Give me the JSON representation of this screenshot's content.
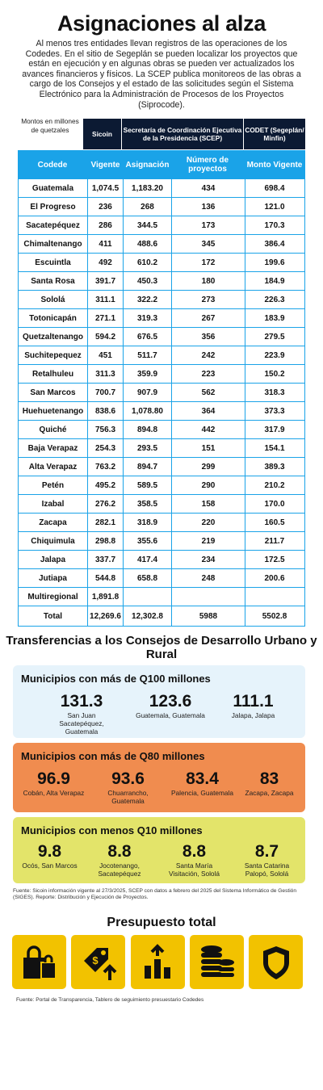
{
  "title": "Asignaciones al alza",
  "intro": "Al menos tres entidades llevan registros de las operaciones de los Codedes. En el sitio de Segeplán se pueden localizar los proyectos que están en ejecución y en algunas obras se pueden ver actualizados los avances financieros y físicos. La SCEP publica monitoreos de las obras a cargo de los Consejos y el estado de las solicitudes según el Sistema Electrónico para la Administración de Procesos de los Proyectos (Siprocode).",
  "table": {
    "note": "Montos en millones de quetzales",
    "group_headers": {
      "sicoin": "Sicoin",
      "scep": "Secretaría de Coordinación Ejecutiva de la Presidencia (SCEP)",
      "codet": "CODET (Segeplán/ Minfin)"
    },
    "columns": {
      "codede": "Codede",
      "vigente": "Vigente",
      "asignacion": "Asignación",
      "proyectos": "Número de proyectos",
      "monto": "Monto Vigente"
    },
    "rows": [
      [
        "Guatemala",
        "1,074.5",
        "1,183.20",
        "434",
        "698.4"
      ],
      [
        "El Progreso",
        "236",
        "268",
        "136",
        "121.0"
      ],
      [
        "Sacatepéquez",
        "286",
        "344.5",
        "173",
        "170.3"
      ],
      [
        "Chimaltenango",
        "411",
        "488.6",
        "345",
        "386.4"
      ],
      [
        "Escuintla",
        "492",
        "610.2",
        "172",
        "199.6"
      ],
      [
        "Santa Rosa",
        "391.7",
        "450.3",
        "180",
        "184.9"
      ],
      [
        "Sololá",
        "311.1",
        "322.2",
        "273",
        "226.3"
      ],
      [
        "Totonicapán",
        "271.1",
        "319.3",
        "267",
        "183.9"
      ],
      [
        "Quetzaltenango",
        "594.2",
        "676.5",
        "356",
        "279.5"
      ],
      [
        "Suchitepequez",
        "451",
        "511.7",
        "242",
        "223.9"
      ],
      [
        "Retalhuleu",
        "311.3",
        "359.9",
        "223",
        "150.2"
      ],
      [
        "San Marcos",
        "700.7",
        "907.9",
        "562",
        "318.3"
      ],
      [
        "Huehuetenango",
        "838.6",
        "1,078.80",
        "364",
        "373.3"
      ],
      [
        "Quiché",
        "756.3",
        "894.8",
        "442",
        "317.9"
      ],
      [
        "Baja Verapaz",
        "254.3",
        "293.5",
        "151",
        "154.1"
      ],
      [
        "Alta Verapaz",
        "763.2",
        "894.7",
        "299",
        "389.3"
      ],
      [
        "Petén",
        "495.2",
        "589.5",
        "290",
        "210.2"
      ],
      [
        "Izabal",
        "276.2",
        "358.5",
        "158",
        "170.0"
      ],
      [
        "Zacapa",
        "282.1",
        "318.9",
        "220",
        "160.5"
      ],
      [
        "Chiquimula",
        "298.8",
        "355.6",
        "219",
        "211.7"
      ],
      [
        "Jalapa",
        "337.7",
        "417.4",
        "234",
        "172.5"
      ],
      [
        "Jutiapa",
        "544.8",
        "658.8",
        "248",
        "200.6"
      ],
      [
        "Multiregional",
        "1,891.8",
        "",
        "",
        ""
      ],
      [
        "Total",
        "12,269.6",
        "12,302.8",
        "5988",
        "5502.8"
      ]
    ]
  },
  "transfers": {
    "title": "Transferencias a los Consejos de Desarrollo Urbano y Rural",
    "groups": [
      {
        "title": "Municipios con más de Q100 millones",
        "color": "#e6f3fb",
        "items": [
          {
            "value": "131.3",
            "label": "San Juan Sacatepéquez, Guatemala"
          },
          {
            "value": "123.6",
            "label": "Guatemala, Guatemala"
          },
          {
            "value": "111.1",
            "label": "Jalapa, Jalapa"
          }
        ]
      },
      {
        "title": "Municipios con más de Q80 millones",
        "color": "#f08c4f",
        "items": [
          {
            "value": "96.9",
            "label": "Cobán, Alta Verapaz"
          },
          {
            "value": "93.6",
            "label": "Chuarrancho, Guatemala"
          },
          {
            "value": "83.4",
            "label": "Palencia, Guatemala"
          },
          {
            "value": "83",
            "label": "Zacapa, Zacapa"
          }
        ]
      },
      {
        "title": "Municipios con menos Q10 millones",
        "color": "#e3e46a",
        "items": [
          {
            "value": "9.8",
            "label": "Ocós, San Marcos"
          },
          {
            "value": "8.8",
            "label": "Jocotenango, Sacatepéquez"
          },
          {
            "value": "8.8",
            "label": "Santa María Visitación, Sololá"
          },
          {
            "value": "8.7",
            "label": "Santa Catarina Palopó, Sololá"
          }
        ]
      }
    ],
    "source": "Fuente: Sicoin información vigente al 27/3/2025, SCEP con datos a febrero del 2025 del Sistema Informático de Gestión (SIGES). Reporte: Distribución y Ejecución de Proyectos."
  },
  "budget": {
    "title": "Presupuesto total",
    "icons": [
      "shopping-bags-icon",
      "price-tag-up-icon",
      "bar-chart-up-icon",
      "coin-stacks-icon",
      "shield-icon"
    ],
    "accent": "#f2c200",
    "source": "Fuente: Portal de Transparencia, Tablero de seguimiento presuestario Codedes"
  }
}
